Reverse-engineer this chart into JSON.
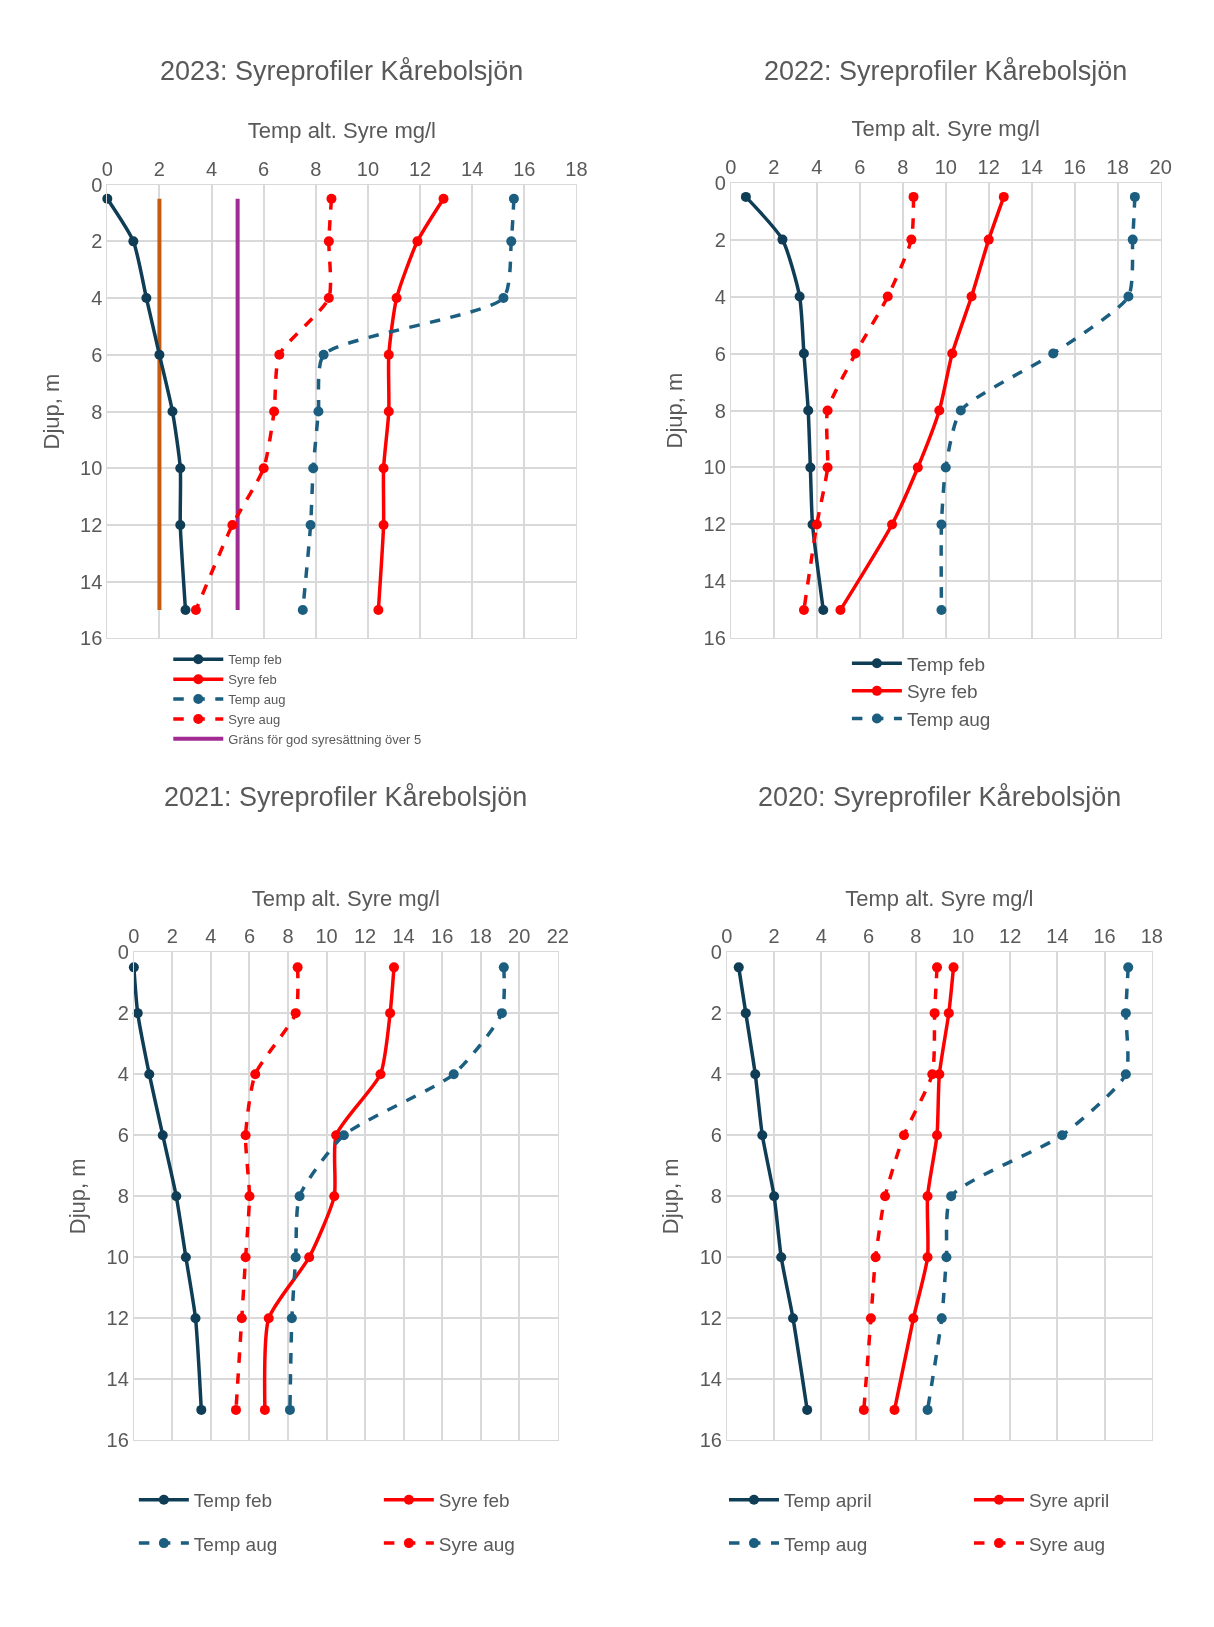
{
  "chart_data": [
    {
      "type": "line",
      "title": "2023: Syreprofiler Kårebolsjön",
      "xlabel": "Temp alt. Syre mg/l",
      "ylabel": "Djup, m",
      "xlim": [
        0,
        18
      ],
      "xticks": [
        0,
        2,
        4,
        6,
        8,
        10,
        12,
        14,
        16,
        18
      ],
      "ylim": [
        16,
        0
      ],
      "yticks": [
        0,
        2,
        4,
        6,
        8,
        10,
        12,
        14,
        16
      ],
      "grid": true,
      "legend": "bottom left",
      "marker": "circle",
      "series": [
        {
          "name": "Temp feb",
          "color": "#0f3d56",
          "line_style": "solid",
          "x": [
            0.0,
            1.0,
            1.5,
            2.0,
            2.5,
            2.8,
            2.8,
            3.0
          ],
          "values": [
            0.5,
            2,
            4,
            6,
            8,
            10,
            12,
            15
          ]
        },
        {
          "name": "Syre feb",
          "color": "#ff0000",
          "line_style": "solid",
          "x": [
            12.9,
            11.9,
            11.1,
            10.8,
            10.8,
            10.6,
            10.6,
            10.4
          ],
          "values": [
            0.5,
            2,
            4,
            6,
            8,
            10,
            12,
            15
          ]
        },
        {
          "name": "Temp aug",
          "color": "#1b5e80",
          "line_style": "dashed",
          "x": [
            15.6,
            15.5,
            15.2,
            8.3,
            8.1,
            7.9,
            7.8,
            7.5
          ],
          "values": [
            0.5,
            2,
            4,
            6,
            8,
            10,
            12,
            15
          ]
        },
        {
          "name": "Syre aug",
          "color": "#ff0000",
          "line_style": "dashed",
          "x": [
            8.6,
            8.5,
            8.5,
            6.6,
            6.4,
            6.0,
            4.8,
            3.4
          ],
          "values": [
            0.5,
            2,
            4,
            6,
            8,
            10,
            12,
            15
          ]
        },
        {
          "name": "Gräns för god syresättning över 5",
          "color": "#a02b93",
          "line_style": "solid",
          "marker": "none",
          "x": [
            5,
            5
          ],
          "values": [
            0.5,
            15
          ]
        },
        {
          "color": "#c55a11",
          "line_style": "solid",
          "marker": "none",
          "x": [
            2,
            2
          ],
          "values": [
            0.5,
            15
          ]
        }
      ]
    },
    {
      "type": "line",
      "title": "2022: Syreprofiler Kårebolsjön",
      "xlabel": "Temp alt. Syre mg/l",
      "ylabel": "Djup, m",
      "xlim": [
        0,
        20
      ],
      "xticks": [
        0,
        2,
        4,
        6,
        8,
        10,
        12,
        14,
        16,
        18,
        20
      ],
      "ylim": [
        16,
        0
      ],
      "yticks": [
        0,
        2,
        4,
        6,
        8,
        10,
        12,
        14,
        16
      ],
      "grid": true,
      "legend": "bottom",
      "marker": "circle",
      "series": [
        {
          "name": "Temp feb",
          "color": "#0f3d56",
          "line_style": "solid",
          "x": [
            0.7,
            2.4,
            3.2,
            3.4,
            3.6,
            3.7,
            3.8,
            4.3
          ],
          "values": [
            0.5,
            2,
            4,
            6,
            8,
            10,
            12,
            15
          ]
        },
        {
          "name": "Syre feb",
          "color": "#ff0000",
          "line_style": "solid",
          "x": [
            12.7,
            12.0,
            11.2,
            10.3,
            9.7,
            8.7,
            7.5,
            5.1
          ],
          "values": [
            0.5,
            2,
            4,
            6,
            8,
            10,
            12,
            15
          ]
        },
        {
          "name": "Temp aug",
          "color": "#1b5e80",
          "line_style": "dashed",
          "x": [
            18.8,
            18.7,
            18.5,
            15.0,
            10.7,
            10.0,
            9.8,
            9.8
          ],
          "values": [
            0.5,
            2,
            4,
            6,
            8,
            10,
            12,
            15
          ]
        },
        {
          "color": "#ff0000",
          "line_style": "dashed",
          "x": [
            8.5,
            8.4,
            7.3,
            5.8,
            4.5,
            4.5,
            4.0,
            3.4
          ],
          "values": [
            0.5,
            2,
            4,
            6,
            8,
            10,
            12,
            15
          ]
        }
      ]
    },
    {
      "type": "line",
      "title": "2021: Syreprofiler Kårebolsjön",
      "xlabel": "Temp alt. Syre mg/l",
      "ylabel": "Djup, m",
      "xlim": [
        0,
        22
      ],
      "xticks": [
        0,
        2,
        4,
        6,
        8,
        10,
        12,
        14,
        16,
        18,
        20,
        22
      ],
      "ylim": [
        16,
        0
      ],
      "yticks": [
        0,
        2,
        4,
        6,
        8,
        10,
        12,
        14,
        16
      ],
      "grid": true,
      "legend": "bottom",
      "marker": "circle",
      "series": [
        {
          "name": "Temp feb",
          "color": "#0f3d56",
          "line_style": "solid",
          "x": [
            0.0,
            0.2,
            0.8,
            1.5,
            2.2,
            2.7,
            3.2,
            3.5
          ],
          "values": [
            0.5,
            2,
            4,
            6,
            8,
            10,
            12,
            15
          ]
        },
        {
          "name": "Syre feb",
          "color": "#ff0000",
          "line_style": "solid",
          "x": [
            13.5,
            13.3,
            12.8,
            10.5,
            10.4,
            9.1,
            7.0,
            6.8
          ],
          "values": [
            0.5,
            2,
            4,
            6,
            8,
            10,
            12,
            15
          ]
        },
        {
          "name": "Temp aug",
          "color": "#1b5e80",
          "line_style": "dashed",
          "x": [
            19.2,
            19.1,
            16.6,
            10.9,
            8.6,
            8.4,
            8.2,
            8.1
          ],
          "values": [
            0.5,
            2,
            4,
            6,
            8,
            10,
            12,
            15
          ]
        },
        {
          "name": "Syre aug",
          "color": "#ff0000",
          "line_style": "dashed",
          "x": [
            8.5,
            8.4,
            6.3,
            5.8,
            6.0,
            5.8,
            5.6,
            5.3
          ],
          "values": [
            0.5,
            2,
            4,
            6,
            8,
            10,
            12,
            15
          ]
        }
      ]
    },
    {
      "type": "line",
      "title": "2020: Syreprofiler Kårebolsjön",
      "xlabel": "Temp alt. Syre mg/l",
      "ylabel": "Djup, m",
      "xlim": [
        0,
        18
      ],
      "xticks": [
        0,
        2,
        4,
        6,
        8,
        10,
        12,
        14,
        16,
        18
      ],
      "ylim": [
        16,
        0
      ],
      "yticks": [
        0,
        2,
        4,
        6,
        8,
        10,
        12,
        14,
        16
      ],
      "grid": true,
      "legend": "bottom",
      "marker": "circle",
      "series": [
        {
          "name": "Temp april",
          "color": "#0f3d56",
          "line_style": "solid",
          "x": [
            0.5,
            0.8,
            1.2,
            1.5,
            2.0,
            2.3,
            2.8,
            3.4
          ],
          "values": [
            0.5,
            2,
            4,
            6,
            8,
            10,
            12,
            15
          ]
        },
        {
          "name": "Syre april",
          "color": "#ff0000",
          "line_style": "solid",
          "x": [
            9.6,
            9.4,
            9.0,
            8.9,
            8.5,
            8.5,
            7.9,
            7.1
          ],
          "values": [
            0.5,
            2,
            4,
            6,
            8,
            10,
            12,
            15
          ]
        },
        {
          "name": "Temp aug",
          "color": "#1b5e80",
          "line_style": "dashed",
          "x": [
            17.0,
            16.9,
            16.9,
            14.2,
            9.5,
            9.3,
            9.1,
            8.5
          ],
          "values": [
            0.5,
            2,
            4,
            6,
            8,
            10,
            12,
            15
          ]
        },
        {
          "name": "Syre aug",
          "color": "#ff0000",
          "line_style": "dashed",
          "x": [
            8.9,
            8.8,
            8.7,
            7.5,
            6.7,
            6.3,
            6.1,
            5.8
          ],
          "values": [
            0.5,
            2,
            4,
            6,
            8,
            10,
            12,
            15
          ]
        }
      ]
    }
  ]
}
